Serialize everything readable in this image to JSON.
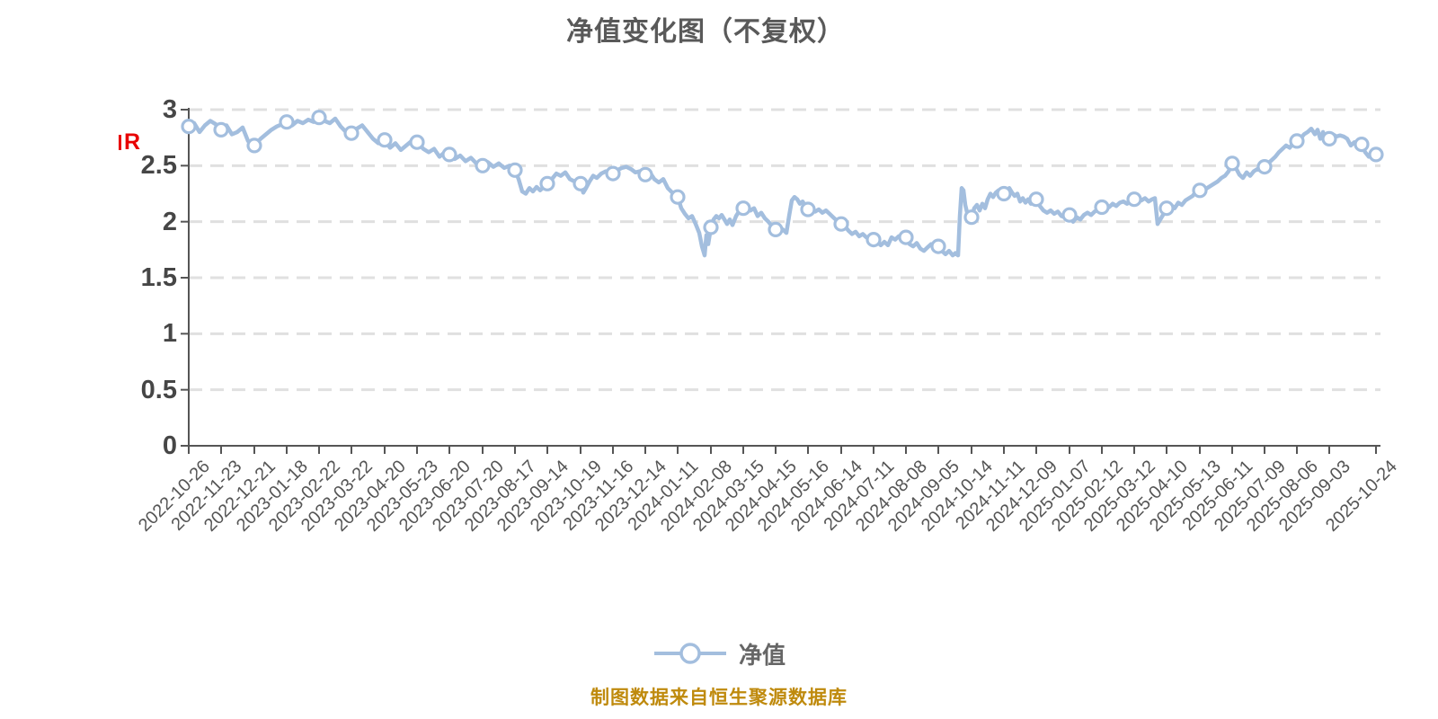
{
  "title": {
    "text": "净值变化图（不复权）"
  },
  "watermark": {
    "text": "R"
  },
  "legend": {
    "label": "净值"
  },
  "footer": {
    "text": "制图数据来自恒生聚源数据库"
  },
  "colors": {
    "line": "#a3bede",
    "marker_fill": "#ffffff",
    "marker_stroke": "#a3bede",
    "grid": "#e0e0e0",
    "axis": "#555555",
    "y_label": "#464646",
    "x_label": "#555555",
    "title": "#595959",
    "footer": "#bf8a0d",
    "watermark": "#e80000"
  },
  "chart_data": {
    "type": "line",
    "title": "净值变化图（不复权）",
    "series_name": "净值",
    "legend_position": "bottom",
    "grid": "dashed-horizontal",
    "ylim": [
      0,
      3
    ],
    "y_ticks": [
      0,
      0.5,
      1,
      1.5,
      2,
      2.5,
      3
    ],
    "x_labels": [
      "2022-10-26",
      "2022-11-23",
      "2022-12-21",
      "2023-01-18",
      "2023-02-22",
      "2023-03-22",
      "2023-04-20",
      "2023-05-23",
      "2023-06-20",
      "2023-07-20",
      "2023-08-17",
      "2023-09-14",
      "2023-10-19",
      "2023-11-16",
      "2023-12-14",
      "2024-01-11",
      "2024-02-08",
      "2024-03-15",
      "2024-04-15",
      "2024-05-16",
      "2024-06-14",
      "2024-07-11",
      "2024-08-08",
      "2024-09-05",
      "2024-10-14",
      "2024-11-11",
      "2024-12-09",
      "2025-01-07",
      "2025-02-12",
      "2025-03-12",
      "2025-04-10",
      "2025-05-13",
      "2025-06-11",
      "2025-07-09",
      "2025-08-06",
      "2025-09-03",
      "2025-10-24"
    ],
    "tick_offsets": [
      0,
      36,
      73,
      109,
      145,
      181,
      218,
      254,
      290,
      327,
      363,
      399,
      436,
      472,
      508,
      544,
      581,
      617,
      653,
      689,
      726,
      762,
      798,
      834,
      871,
      907,
      943,
      980,
      1016,
      1052,
      1088,
      1125,
      1161,
      1197,
      1233,
      1269,
      1321
    ],
    "values_at_ticks": [
      2.85,
      2.82,
      2.68,
      2.89,
      2.93,
      2.79,
      2.73,
      2.71,
      2.6,
      2.5,
      2.46,
      2.34,
      2.34,
      2.43,
      2.42,
      2.22,
      1.95,
      2.12,
      1.93,
      2.11,
      1.98,
      1.84,
      1.86,
      1.78,
      2.04,
      2.25,
      2.2,
      2.06,
      2.13,
      2.2,
      2.12,
      2.28,
      2.52,
      2.49,
      2.72,
      2.74,
      2.6
    ],
    "extra_markers": [
      [
        1305,
        2.69
      ]
    ],
    "dense_points": [
      [
        0,
        2.85
      ],
      [
        6,
        2.88
      ],
      [
        12,
        2.8
      ],
      [
        18,
        2.86
      ],
      [
        24,
        2.9
      ],
      [
        30,
        2.87
      ],
      [
        36,
        2.82
      ],
      [
        42,
        2.86
      ],
      [
        48,
        2.78
      ],
      [
        54,
        2.8
      ],
      [
        60,
        2.84
      ],
      [
        66,
        2.72
      ],
      [
        73,
        2.68
      ],
      [
        80,
        2.74
      ],
      [
        86,
        2.78
      ],
      [
        92,
        2.82
      ],
      [
        98,
        2.85
      ],
      [
        104,
        2.87
      ],
      [
        109,
        2.89
      ],
      [
        115,
        2.86
      ],
      [
        121,
        2.9
      ],
      [
        127,
        2.88
      ],
      [
        133,
        2.91
      ],
      [
        139,
        2.89
      ],
      [
        145,
        2.93
      ],
      [
        148,
        2.94
      ],
      [
        151,
        2.9
      ],
      [
        157,
        2.88
      ],
      [
        163,
        2.92
      ],
      [
        169,
        2.85
      ],
      [
        175,
        2.8
      ],
      [
        181,
        2.79
      ],
      [
        187,
        2.83
      ],
      [
        193,
        2.86
      ],
      [
        199,
        2.8
      ],
      [
        205,
        2.74
      ],
      [
        211,
        2.7
      ],
      [
        218,
        2.73
      ],
      [
        224,
        2.66
      ],
      [
        230,
        2.7
      ],
      [
        236,
        2.64
      ],
      [
        242,
        2.68
      ],
      [
        248,
        2.72
      ],
      [
        254,
        2.71
      ],
      [
        261,
        2.65
      ],
      [
        267,
        2.62
      ],
      [
        273,
        2.65
      ],
      [
        279,
        2.58
      ],
      [
        285,
        2.62
      ],
      [
        290,
        2.6
      ],
      [
        296,
        2.56
      ],
      [
        302,
        2.59
      ],
      [
        308,
        2.54
      ],
      [
        314,
        2.57
      ],
      [
        320,
        2.52
      ],
      [
        327,
        2.5
      ],
      [
        333,
        2.53
      ],
      [
        339,
        2.49
      ],
      [
        345,
        2.52
      ],
      [
        351,
        2.48
      ],
      [
        357,
        2.5
      ],
      [
        363,
        2.46
      ],
      [
        367,
        2.38
      ],
      [
        371,
        2.27
      ],
      [
        375,
        2.25
      ],
      [
        379,
        2.3
      ],
      [
        383,
        2.27
      ],
      [
        387,
        2.31
      ],
      [
        391,
        2.28
      ],
      [
        395,
        2.31
      ],
      [
        399,
        2.34
      ],
      [
        404,
        2.38
      ],
      [
        409,
        2.43
      ],
      [
        414,
        2.41
      ],
      [
        419,
        2.44
      ],
      [
        424,
        2.38
      ],
      [
        429,
        2.36
      ],
      [
        436,
        2.34
      ],
      [
        439,
        2.26
      ],
      [
        442,
        2.3
      ],
      [
        446,
        2.36
      ],
      [
        450,
        2.41
      ],
      [
        454,
        2.39
      ],
      [
        459,
        2.43
      ],
      [
        464,
        2.45
      ],
      [
        468,
        2.44
      ],
      [
        472,
        2.43
      ],
      [
        477,
        2.46
      ],
      [
        482,
        2.48
      ],
      [
        487,
        2.49
      ],
      [
        492,
        2.47
      ],
      [
        497,
        2.44
      ],
      [
        502,
        2.45
      ],
      [
        508,
        2.42
      ],
      [
        513,
        2.44
      ],
      [
        518,
        2.38
      ],
      [
        523,
        2.35
      ],
      [
        528,
        2.38
      ],
      [
        533,
        2.3
      ],
      [
        538,
        2.26
      ],
      [
        544,
        2.22
      ],
      [
        548,
        2.12
      ],
      [
        552,
        2.07
      ],
      [
        556,
        2.03
      ],
      [
        560,
        2.05
      ],
      [
        564,
        1.98
      ],
      [
        568,
        1.9
      ],
      [
        571,
        1.78
      ],
      [
        574,
        1.7
      ],
      [
        576,
        1.88
      ],
      [
        578,
        1.8
      ],
      [
        581,
        1.95
      ],
      [
        584,
        2.02
      ],
      [
        587,
        2.05
      ],
      [
        590,
        2.03
      ],
      [
        593,
        2.06
      ],
      [
        596,
        2.02
      ],
      [
        599,
        1.98
      ],
      [
        602,
        2.02
      ],
      [
        605,
        1.97
      ],
      [
        609,
        2.05
      ],
      [
        613,
        2.1
      ],
      [
        617,
        2.12
      ],
      [
        621,
        2.14
      ],
      [
        625,
        2.1
      ],
      [
        629,
        2.12
      ],
      [
        633,
        2.05
      ],
      [
        637,
        2.08
      ],
      [
        641,
        2.03
      ],
      [
        645,
        2.0
      ],
      [
        649,
        1.96
      ],
      [
        653,
        1.93
      ],
      [
        657,
        1.9
      ],
      [
        661,
        1.93
      ],
      [
        665,
        1.9
      ],
      [
        668,
        2.05
      ],
      [
        671,
        2.19
      ],
      [
        674,
        2.22
      ],
      [
        677,
        2.2
      ],
      [
        680,
        2.16
      ],
      [
        683,
        2.18
      ],
      [
        686,
        2.14
      ],
      [
        689,
        2.11
      ],
      [
        693,
        2.13
      ],
      [
        697,
        2.09
      ],
      [
        701,
        2.11
      ],
      [
        705,
        2.08
      ],
      [
        709,
        2.1
      ],
      [
        713,
        2.07
      ],
      [
        717,
        2.04
      ],
      [
        721,
        2.01
      ],
      [
        726,
        1.98
      ],
      [
        730,
        1.96
      ],
      [
        734,
        1.92
      ],
      [
        738,
        1.89
      ],
      [
        742,
        1.91
      ],
      [
        746,
        1.87
      ],
      [
        750,
        1.89
      ],
      [
        754,
        1.86
      ],
      [
        758,
        1.85
      ],
      [
        762,
        1.84
      ],
      [
        766,
        1.82
      ],
      [
        770,
        1.79
      ],
      [
        774,
        1.82
      ],
      [
        778,
        1.79
      ],
      [
        782,
        1.86
      ],
      [
        786,
        1.84
      ],
      [
        790,
        1.87
      ],
      [
        794,
        1.85
      ],
      [
        798,
        1.86
      ],
      [
        802,
        1.8
      ],
      [
        806,
        1.78
      ],
      [
        810,
        1.81
      ],
      [
        814,
        1.76
      ],
      [
        818,
        1.74
      ],
      [
        822,
        1.77
      ],
      [
        826,
        1.8
      ],
      [
        830,
        1.79
      ],
      [
        834,
        1.78
      ],
      [
        838,
        1.74
      ],
      [
        842,
        1.71
      ],
      [
        846,
        1.74
      ],
      [
        850,
        1.7
      ],
      [
        853,
        1.72
      ],
      [
        856,
        1.7
      ],
      [
        858,
        2.05
      ],
      [
        860,
        2.3
      ],
      [
        862,
        2.28
      ],
      [
        864,
        2.15
      ],
      [
        867,
        2.05
      ],
      [
        871,
        2.04
      ],
      [
        874,
        2.12
      ],
      [
        877,
        2.15
      ],
      [
        880,
        2.1
      ],
      [
        883,
        2.16
      ],
      [
        886,
        2.12
      ],
      [
        889,
        2.2
      ],
      [
        892,
        2.25
      ],
      [
        895,
        2.22
      ],
      [
        898,
        2.26
      ],
      [
        901,
        2.28
      ],
      [
        904,
        2.25
      ],
      [
        907,
        2.25
      ],
      [
        910,
        2.28
      ],
      [
        913,
        2.3
      ],
      [
        916,
        2.26
      ],
      [
        919,
        2.23
      ],
      [
        922,
        2.25
      ],
      [
        925,
        2.18
      ],
      [
        928,
        2.21
      ],
      [
        931,
        2.17
      ],
      [
        934,
        2.2
      ],
      [
        937,
        2.16
      ],
      [
        940,
        2.18
      ],
      [
        943,
        2.2
      ],
      [
        947,
        2.14
      ],
      [
        951,
        2.1
      ],
      [
        955,
        2.08
      ],
      [
        959,
        2.1
      ],
      [
        963,
        2.07
      ],
      [
        967,
        2.09
      ],
      [
        971,
        2.05
      ],
      [
        975,
        2.04
      ],
      [
        980,
        2.06
      ],
      [
        984,
        2.0
      ],
      [
        988,
        2.04
      ],
      [
        992,
        2.02
      ],
      [
        996,
        2.06
      ],
      [
        1000,
        2.08
      ],
      [
        1004,
        2.06
      ],
      [
        1008,
        2.09
      ],
      [
        1012,
        2.11
      ],
      [
        1016,
        2.13
      ],
      [
        1020,
        2.16
      ],
      [
        1024,
        2.13
      ],
      [
        1028,
        2.16
      ],
      [
        1032,
        2.14
      ],
      [
        1036,
        2.17
      ],
      [
        1040,
        2.18
      ],
      [
        1044,
        2.16
      ],
      [
        1048,
        2.18
      ],
      [
        1052,
        2.2
      ],
      [
        1056,
        2.22
      ],
      [
        1060,
        2.19
      ],
      [
        1064,
        2.21
      ],
      [
        1068,
        2.18
      ],
      [
        1072,
        2.2
      ],
      [
        1075,
        2.21
      ],
      [
        1078,
        1.98
      ],
      [
        1081,
        2.02
      ],
      [
        1084,
        2.06
      ],
      [
        1087,
        2.1
      ],
      [
        1089,
        2.12
      ],
      [
        1093,
        2.15
      ],
      [
        1097,
        2.12
      ],
      [
        1101,
        2.17
      ],
      [
        1105,
        2.15
      ],
      [
        1109,
        2.19
      ],
      [
        1113,
        2.21
      ],
      [
        1117,
        2.23
      ],
      [
        1120,
        2.26
      ],
      [
        1125,
        2.28
      ],
      [
        1129,
        2.27
      ],
      [
        1133,
        2.3
      ],
      [
        1137,
        2.32
      ],
      [
        1141,
        2.34
      ],
      [
        1145,
        2.36
      ],
      [
        1149,
        2.39
      ],
      [
        1153,
        2.41
      ],
      [
        1157,
        2.45
      ],
      [
        1161,
        2.52
      ],
      [
        1165,
        2.48
      ],
      [
        1169,
        2.42
      ],
      [
        1173,
        2.39
      ],
      [
        1177,
        2.44
      ],
      [
        1181,
        2.41
      ],
      [
        1185,
        2.45
      ],
      [
        1189,
        2.47
      ],
      [
        1193,
        2.46
      ],
      [
        1197,
        2.49
      ],
      [
        1201,
        2.52
      ],
      [
        1205,
        2.55
      ],
      [
        1209,
        2.58
      ],
      [
        1213,
        2.62
      ],
      [
        1217,
        2.65
      ],
      [
        1221,
        2.68
      ],
      [
        1225,
        2.66
      ],
      [
        1229,
        2.7
      ],
      [
        1233,
        2.72
      ],
      [
        1237,
        2.74
      ],
      [
        1241,
        2.78
      ],
      [
        1245,
        2.8
      ],
      [
        1249,
        2.83
      ],
      [
        1253,
        2.78
      ],
      [
        1256,
        2.82
      ],
      [
        1259,
        2.74
      ],
      [
        1262,
        2.8
      ],
      [
        1265,
        2.72
      ],
      [
        1269,
        2.74
      ],
      [
        1273,
        2.78
      ],
      [
        1277,
        2.76
      ],
      [
        1281,
        2.77
      ],
      [
        1285,
        2.76
      ],
      [
        1289,
        2.74
      ],
      [
        1293,
        2.68
      ],
      [
        1297,
        2.71
      ],
      [
        1301,
        2.66
      ],
      [
        1305,
        2.69
      ],
      [
        1309,
        2.62
      ],
      [
        1313,
        2.58
      ],
      [
        1317,
        2.62
      ],
      [
        1321,
        2.6
      ]
    ]
  }
}
